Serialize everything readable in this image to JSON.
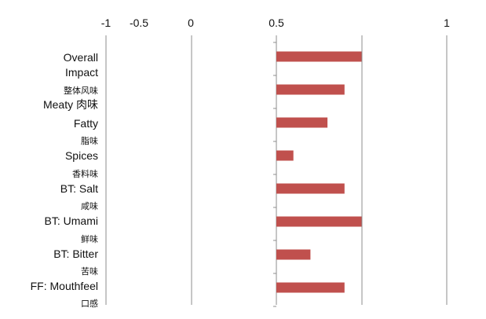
{
  "chart_data": {
    "type": "bar",
    "orientation": "horizontal",
    "title": "",
    "xlabel": "",
    "ylabel": "",
    "xlim": [
      -1,
      1
    ],
    "x_ticks": [
      {
        "value": -1,
        "label": "-1"
      },
      {
        "value": -0.5,
        "label": "-0.5"
      },
      {
        "value": 0,
        "label": "0"
      },
      {
        "value": 0.5,
        "label": "0.5"
      },
      {
        "value": 1,
        "label": "1"
      }
    ],
    "grid": "vertical",
    "bar_color": "#c0504d",
    "categories": [
      {
        "lines": [
          "Overall",
          "Impact"
        ],
        "zh": "整体风味",
        "value": 0.5
      },
      {
        "lines": [
          "Meaty 肉味"
        ],
        "zh": "",
        "value": 0.4
      },
      {
        "lines": [
          "Fatty"
        ],
        "zh": "脂味",
        "value": 0.3
      },
      {
        "lines": [
          "Spices"
        ],
        "zh": "香料味",
        "value": 0.1
      },
      {
        "lines": [
          "BT: Salt"
        ],
        "zh": "咸味",
        "value": 0.4
      },
      {
        "lines": [
          "BT: Umami"
        ],
        "zh": "鲜味",
        "value": 0.5
      },
      {
        "lines": [
          "BT: Bitter"
        ],
        "zh": "苦味",
        "value": 0.2
      },
      {
        "lines": [
          "FF: Mouthfeel"
        ],
        "zh": "口感",
        "value": 0.4
      }
    ]
  }
}
